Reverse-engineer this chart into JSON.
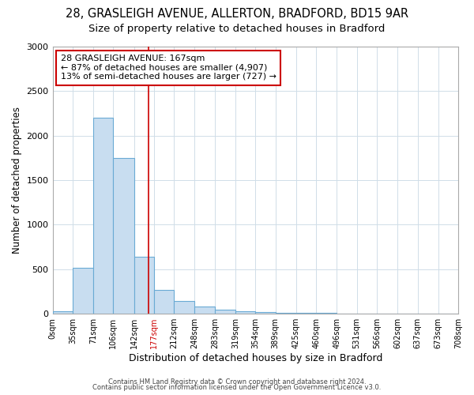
{
  "title1": "28, GRASLEIGH AVENUE, ALLERTON, BRADFORD, BD15 9AR",
  "title2": "Size of property relative to detached houses in Bradford",
  "xlabel": "Distribution of detached houses by size in Bradford",
  "ylabel": "Number of detached properties",
  "bin_edges": [
    0,
    35,
    71,
    106,
    142,
    177,
    212,
    248,
    283,
    319,
    354,
    389,
    425,
    460,
    496,
    531,
    566,
    602,
    637,
    673,
    708
  ],
  "bar_heights": [
    30,
    520,
    2200,
    1750,
    640,
    270,
    145,
    80,
    45,
    30,
    20,
    15,
    10,
    8,
    6,
    5,
    4,
    3,
    3,
    3
  ],
  "bar_color": "#c8ddf0",
  "bar_edge_color": "#6aaad4",
  "ylim": [
    0,
    3000
  ],
  "yticks": [
    0,
    500,
    1000,
    1500,
    2000,
    2500,
    3000
  ],
  "property_size": 167,
  "red_line_color": "#cc0000",
  "annotation_line1": "28 GRASLEIGH AVENUE: 167sqm",
  "annotation_line2": "← 87% of detached houses are smaller (4,907)",
  "annotation_line3": "13% of semi-detached houses are larger (727) →",
  "annotation_box_color": "#ffffff",
  "annotation_border_color": "#cc0000",
  "footnote1": "Contains HM Land Registry data © Crown copyright and database right 2024.",
  "footnote2": "Contains public sector information licensed under the Open Government Licence v3.0.",
  "bg_color": "#ffffff",
  "plot_bg_color": "#ffffff",
  "title1_fontsize": 10.5,
  "title2_fontsize": 9.5,
  "xlabel_fontsize": 9,
  "ylabel_fontsize": 8.5,
  "red_xtick_label": "177sqm"
}
